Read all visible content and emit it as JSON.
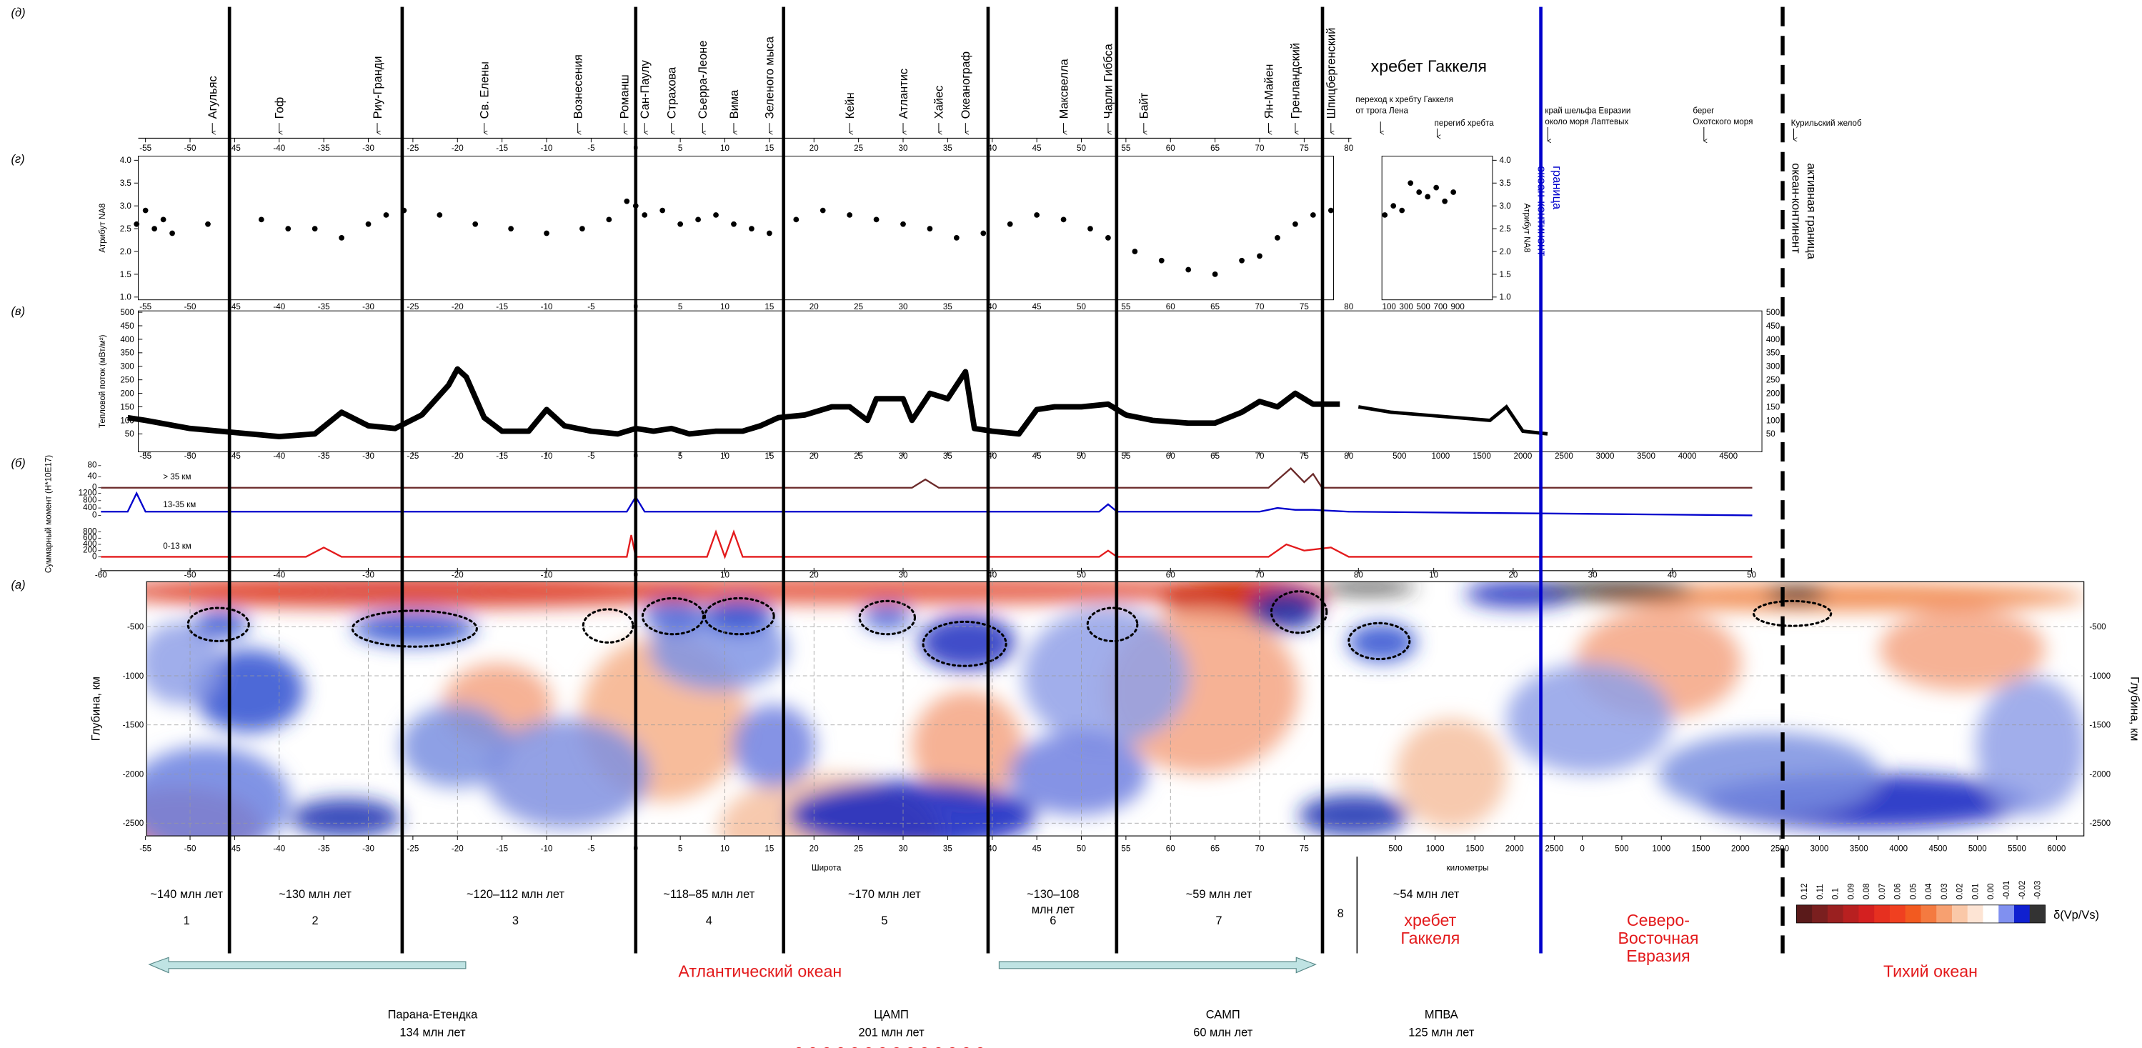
{
  "panel_letters": [
    "(д)",
    "(г)",
    "(в)",
    "(б)",
    "(а)"
  ],
  "ridges": [
    "Агульяс",
    "Гоф",
    "Риу-Гранди",
    "Св. Елены",
    "Вознесения",
    "Романш",
    "Сан-Паулу",
    "Страхова",
    "Сьерра-Леоне",
    "Вима",
    "Зеленого мыса",
    "Кейн",
    "Атлантис",
    "Хайес",
    "Океанограф",
    "Максвелла",
    "Чарли Гиббса",
    "Байт",
    "Ян-Майен",
    "Гренландский",
    "Шпицбергенский"
  ],
  "gakkel": {
    "title": "хребет Гаккеля",
    "note1": [
      "переход к хребту Гаккеля",
      "от трога Лена"
    ],
    "note2": "перегиб хребта"
  },
  "eurasia_notes": [
    [
      "край шельфа Евразии",
      "около моря Лаптевых"
    ],
    [
      "берег",
      "Охотского моря"
    ],
    [
      "Курильский желоб"
    ]
  ],
  "boundaries": [
    [
      "граница",
      "океан-континент"
    ],
    [
      "активная граница",
      "океан-континент"
    ]
  ],
  "top_axis_ticks": [
    -55,
    -50,
    -45,
    -40,
    -35,
    -30,
    -25,
    -20,
    -15,
    -10,
    -5,
    0,
    5,
    10,
    15,
    20,
    25,
    30,
    35,
    40,
    45,
    50,
    55,
    60,
    65,
    70,
    75,
    80
  ],
  "na8": {
    "label": "Атрибут NA8",
    "ylim": [
      1,
      4
    ],
    "yticks": [
      {
        "value": 1,
        "label": "1.0"
      },
      {
        "value": 1.5,
        "label": "1.5"
      },
      {
        "value": 2,
        "label": "2.0"
      },
      {
        "value": 2.5,
        "label": "2.5"
      },
      {
        "value": 3,
        "label": "3.0"
      },
      {
        "value": 3.5,
        "label": "3.5"
      },
      {
        "value": 4,
        "label": "4.0"
      }
    ],
    "x": [
      -56,
      -55,
      -54,
      -53,
      -52,
      -48,
      -42,
      -39,
      -36,
      -33,
      -30,
      -28,
      -26,
      -22,
      -18,
      -14,
      -10,
      -6,
      -3,
      -1,
      0,
      1,
      3,
      5,
      7,
      9,
      11,
      13,
      15,
      18,
      21,
      24,
      27,
      30,
      33,
      36,
      39,
      42,
      45,
      48,
      51,
      53,
      56,
      59,
      62,
      65,
      68,
      70,
      72,
      74,
      76,
      78
    ],
    "values": [
      2.6,
      2.9,
      2.5,
      2.7,
      2.4,
      2.6,
      2.7,
      2.5,
      2.5,
      2.3,
      2.6,
      2.8,
      2.9,
      2.8,
      2.6,
      2.5,
      2.4,
      2.5,
      2.7,
      3.1,
      3.0,
      2.8,
      2.9,
      2.6,
      2.7,
      2.8,
      2.6,
      2.5,
      2.4,
      2.7,
      2.9,
      2.8,
      2.7,
      2.6,
      2.5,
      2.3,
      2.4,
      2.6,
      2.8,
      2.7,
      2.5,
      2.3,
      2.0,
      1.8,
      1.6,
      1.5,
      1.8,
      1.9,
      2.3,
      2.6,
      2.8,
      2.9
    ],
    "inset_ticks": [
      100,
      300,
      500,
      700,
      900
    ],
    "inset_x": [
      50,
      150,
      250,
      350,
      450,
      550,
      650,
      750,
      850
    ],
    "inset_values": [
      2.8,
      3.0,
      2.9,
      3.5,
      3.3,
      3.2,
      3.4,
      3.1,
      3.3
    ]
  },
  "heat": {
    "label": "Тепловой поток (мВт/м²)",
    "ylim": [
      0,
      500
    ],
    "yticks": [
      50,
      100,
      150,
      200,
      250,
      300,
      350,
      400,
      450,
      500
    ],
    "x": [
      -57,
      -55,
      -50,
      -45,
      -40,
      -36,
      -33,
      -30,
      -27,
      -24,
      -21,
      -20,
      -19,
      -17,
      -15,
      -12,
      -10,
      -8,
      -5,
      -2,
      0,
      2,
      4,
      6,
      9,
      12,
      14,
      16,
      19,
      22,
      24,
      26,
      27,
      30,
      31,
      33,
      35,
      36,
      37,
      38,
      40,
      43,
      45,
      47,
      50,
      53,
      55,
      58,
      62,
      65,
      68,
      70,
      72,
      74,
      76,
      79
    ],
    "values": [
      110,
      100,
      70,
      55,
      40,
      50,
      130,
      80,
      70,
      120,
      230,
      290,
      260,
      110,
      60,
      60,
      140,
      80,
      60,
      50,
      70,
      60,
      70,
      50,
      60,
      60,
      80,
      110,
      120,
      150,
      150,
      100,
      180,
      180,
      100,
      200,
      180,
      230,
      280,
      70,
      60,
      50,
      140,
      150,
      150,
      160,
      120,
      100,
      90,
      90,
      130,
      170,
      150,
      200,
      160,
      160
    ],
    "km_x": [
      0,
      400,
      800,
      1200,
      1600,
      1800,
      2000,
      2300
    ],
    "km_values": [
      150,
      130,
      120,
      110,
      100,
      150,
      60,
      50
    ],
    "km_ticks": [
      500,
      1000,
      1500,
      2000,
      2500,
      3000,
      3500,
      4000,
      4500
    ]
  },
  "lat_ticks": [
    -55,
    -50,
    -45,
    -40,
    -35,
    -30,
    -25,
    -20,
    -15,
    -10,
    -5,
    0,
    5,
    10,
    15,
    20,
    25,
    30,
    35,
    40,
    45,
    50,
    55,
    60,
    65,
    70,
    75,
    80
  ],
  "moment": {
    "label": "Суммарный момент (Н*10E17)",
    "bands": [
      {
        "name": "> 35 км",
        "color": "#6b2a2a",
        "ylim": [
          0,
          80
        ],
        "ticks": [
          0,
          40,
          80
        ],
        "x": [
          -60,
          31,
          32.5,
          34,
          71,
          73.5,
          75,
          76,
          77,
          79
        ],
        "values": [
          0,
          0,
          30,
          0,
          0,
          70,
          20,
          50,
          0,
          0
        ]
      },
      {
        "name": "13-35 км",
        "color": "#0000cc",
        "ylim": [
          0,
          1200
        ],
        "ticks": [
          0,
          400,
          800,
          1200
        ],
        "x": [
          -60,
          -57,
          -56,
          -55,
          -1,
          0,
          1,
          52,
          53,
          54,
          70,
          72,
          74,
          76,
          80
        ],
        "values": [
          200,
          200,
          1200,
          200,
          200,
          1000,
          200,
          200,
          600,
          200,
          200,
          400,
          300,
          300,
          200
        ]
      },
      {
        "name": "0-13 км",
        "color": "#e31a1c",
        "ylim": [
          0,
          800
        ],
        "ticks": [
          0,
          200,
          400,
          600,
          800
        ],
        "x": [
          -60,
          -37,
          -35,
          -33,
          -1,
          -0.5,
          0,
          8,
          9,
          10,
          11,
          12,
          52,
          53,
          54,
          71,
          73,
          75,
          78,
          80
        ],
        "values": [
          0,
          0,
          300,
          0,
          0,
          700,
          0,
          0,
          800,
          0,
          800,
          0,
          0,
          200,
          0,
          0,
          400,
          200,
          300,
          0
        ]
      }
    ]
  },
  "mid_ticks": [
    -60,
    -50,
    -40,
    -30,
    -20,
    -10,
    0,
    10,
    20,
    30,
    40,
    50,
    60,
    70,
    80
  ],
  "mid_ticks2": [
    10,
    20,
    30,
    40,
    50
  ],
  "depth": {
    "label": "Глубина, км",
    "ylim": [
      0,
      -2700
    ],
    "ticks": [
      -500,
      -1000,
      -1500,
      -2000,
      -2500
    ]
  },
  "km_ticks1": [
    500,
    1000,
    1500,
    2000,
    2500
  ],
  "km_ticks2": [
    0,
    500,
    1000,
    1500,
    2000,
    2500,
    3000,
    3500,
    4000,
    4500,
    5000,
    5500,
    6000
  ],
  "x_labels": [
    "Широта",
    "километры"
  ],
  "segments": [
    {
      "age": [
        "~140 млн лет"
      ],
      "num": "1"
    },
    {
      "age": [
        "~130 млн лет"
      ],
      "num": "2"
    },
    {
      "age": [
        "~120–112 млн лет"
      ],
      "num": "3"
    },
    {
      "age": [
        "~118–85 млн лет"
      ],
      "num": "4"
    },
    {
      "age": [
        "~170 млн лет"
      ],
      "num": "5"
    },
    {
      "age": [
        "~130–108",
        "млн лет"
      ],
      "num": "6"
    },
    {
      "age": [
        "~59 млн лет"
      ],
      "num": "7"
    },
    {
      "age": [],
      "num": "8"
    }
  ],
  "gakkel_age": "~54 млн лет",
  "oceans": [
    [
      "Атлантический океан"
    ],
    [
      "хребет",
      "Гаккеля"
    ],
    [
      "Северо-",
      "Восточная",
      "Евразия"
    ],
    [
      "Тихий океан"
    ]
  ],
  "colorbar": {
    "label": "δ(Vp/Vs)",
    "ticks": [
      0.12,
      0.11,
      0.1,
      0.09,
      0.08,
      0.07,
      0.06,
      0.05,
      0.04,
      0.03,
      0.02,
      0.01,
      {
        "value": 0,
        "label": "0.00"
      },
      -0.01,
      -0.02,
      -0.03
    ]
  },
  "lips": [
    {
      "name": "Парана-Етендка",
      "age": "134 млн лет"
    },
    {
      "name": "ЦАМП",
      "age": "201 млн лет"
    },
    {
      "name": "САМП",
      "age": "60 млн лет"
    },
    {
      "name": "МПВА",
      "age": "125 млн лет"
    }
  ]
}
